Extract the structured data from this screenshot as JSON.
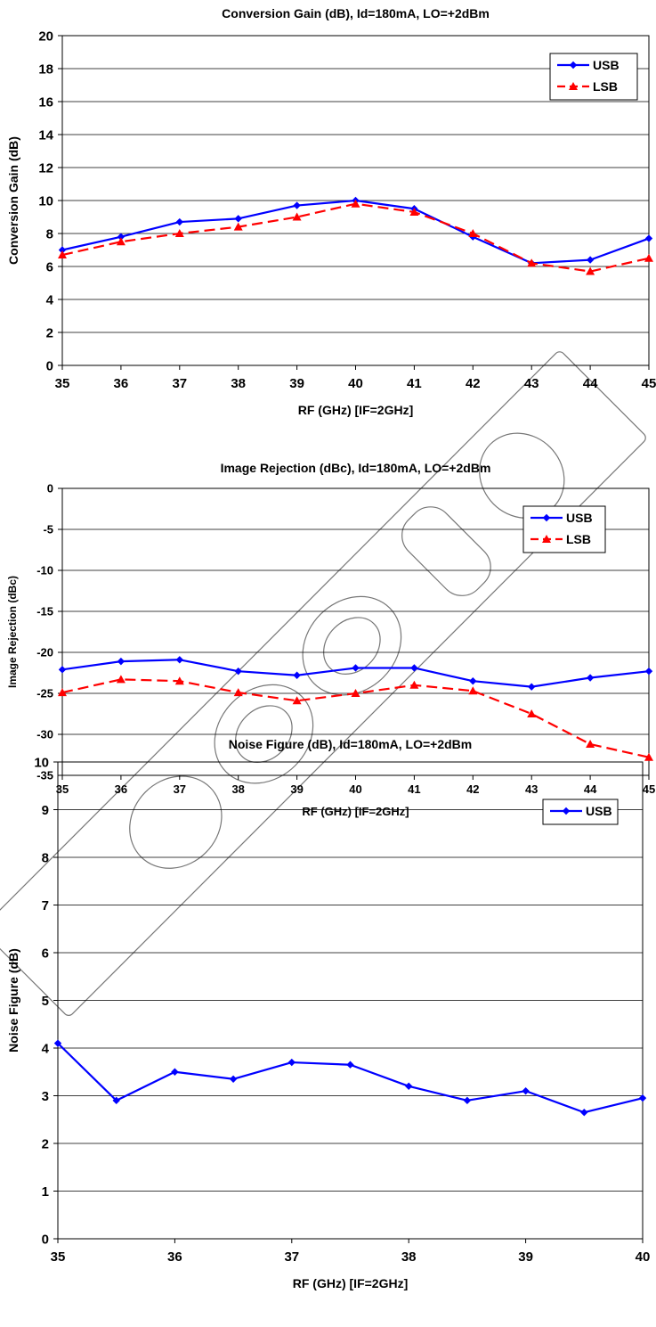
{
  "chart_data": [
    {
      "type": "line",
      "title": "Conversion Gain (dB), Id=180mA, LO=+2dBm",
      "xlabel": "RF (GHz) [IF=2GHz]",
      "ylabel": "Conversion Gain (dB)",
      "xlim": [
        35,
        45
      ],
      "ylim": [
        0,
        20
      ],
      "x_ticks": [
        35,
        36,
        37,
        38,
        39,
        40,
        41,
        42,
        43,
        44,
        45
      ],
      "y_ticks": [
        0,
        2,
        4,
        6,
        8,
        10,
        12,
        14,
        16,
        18,
        20
      ],
      "grid": true,
      "legend_position": "top-right",
      "x": [
        35,
        36,
        37,
        38,
        39,
        40,
        41,
        42,
        43,
        44,
        45
      ],
      "series": [
        {
          "name": "USB",
          "color": "#0000ff",
          "marker": "diamond",
          "dash": "solid",
          "values": [
            7.0,
            7.8,
            8.7,
            8.9,
            9.7,
            10.0,
            9.5,
            7.8,
            6.2,
            6.4,
            7.7
          ]
        },
        {
          "name": "LSB",
          "color": "#ff0000",
          "marker": "triangle",
          "dash": "dashed",
          "values": [
            6.7,
            7.5,
            8.0,
            8.4,
            9.0,
            9.8,
            9.3,
            8.0,
            6.2,
            5.7,
            6.5
          ]
        }
      ]
    },
    {
      "type": "line",
      "title": "Image Rejection (dBc), Id=180mA, LO=+2dBm",
      "xlabel": "RF (GHz) [IF=2GHz]",
      "ylabel": "Image Rejection (dBc)",
      "xlim": [
        35,
        45
      ],
      "ylim": [
        -35,
        0
      ],
      "x_ticks": [
        35,
        36,
        37,
        38,
        39,
        40,
        41,
        42,
        43,
        44,
        45
      ],
      "y_ticks": [
        0,
        -5,
        -10,
        -15,
        -20,
        -25,
        -30,
        -35
      ],
      "grid": true,
      "legend_position": "top-right",
      "x": [
        35,
        36,
        37,
        38,
        39,
        40,
        41,
        42,
        43,
        44,
        45
      ],
      "series": [
        {
          "name": "USB",
          "color": "#0000ff",
          "marker": "diamond",
          "dash": "solid",
          "values": [
            -22.1,
            -21.1,
            -20.9,
            -22.3,
            -22.8,
            -21.9,
            -21.9,
            -23.5,
            -24.2,
            -23.1,
            -22.3
          ]
        },
        {
          "name": "LSB",
          "color": "#ff0000",
          "marker": "triangle",
          "dash": "dashed",
          "values": [
            -24.9,
            -23.3,
            -23.5,
            -24.9,
            -25.9,
            -25.0,
            -24.0,
            -24.7,
            -27.5,
            -31.2,
            -32.8
          ]
        }
      ]
    },
    {
      "type": "line",
      "title": "Noise Figure (dB), Id=180mA, LO=+2dBm",
      "xlabel": "RF (GHz) [IF=2GHz]",
      "ylabel": "Noise Figure (dB)",
      "xlim": [
        35,
        40
      ],
      "ylim": [
        0,
        10
      ],
      "x_ticks": [
        35,
        36,
        37,
        38,
        39,
        40
      ],
      "y_ticks": [
        0,
        1,
        2,
        3,
        4,
        5,
        6,
        7,
        8,
        9,
        10
      ],
      "grid": true,
      "legend_position": "top-right",
      "x": [
        35,
        35.5,
        36,
        36.5,
        37,
        37.5,
        38,
        38.5,
        39,
        39.5,
        40
      ],
      "series": [
        {
          "name": "USB",
          "color": "#0000ff",
          "marker": "diamond",
          "dash": "solid",
          "values": [
            4.1,
            2.9,
            3.5,
            3.35,
            3.7,
            3.65,
            3.2,
            2.9,
            3.1,
            2.65,
            2.95
          ]
        }
      ]
    }
  ]
}
